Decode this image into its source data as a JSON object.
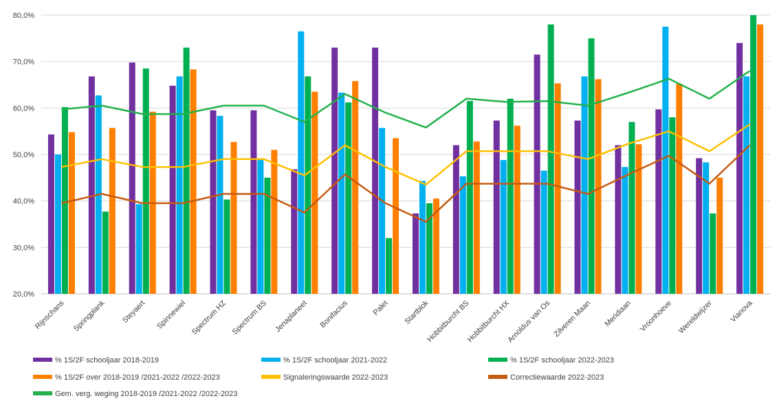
{
  "chart_data": {
    "type": "bar",
    "title": "",
    "xlabel": "",
    "ylabel": "",
    "ylim": [
      20,
      80
    ],
    "yticks": [
      "20,0%",
      "30,0%",
      "40,0%",
      "50,0%",
      "60,0%",
      "70,0%",
      "80,0%"
    ],
    "grid": true,
    "legend_position": "bottom",
    "categories": [
      "Rijnschans",
      "Springplank",
      "Steyaert",
      "Spinnewiel",
      "Spectrum HZ",
      "Spectrum BS",
      "Jenaplaneet",
      "Bonifacius",
      "Palet",
      "Startblok",
      "Hobbitburcht BS",
      "Hobbitburcht HX",
      "Arnoldus van Os",
      "Zilveren Maan",
      "Meridiaan",
      "Vroonhoeve",
      "Wereldwijzer",
      "Vianova"
    ],
    "bar_series": [
      {
        "name": "% 1S/2F schooljaar 2018-2019",
        "color": "#7030A0",
        "values": [
          54.3,
          66.8,
          69.8,
          64.8,
          59.5,
          59.5,
          46.8,
          73.0,
          73.0,
          37.3,
          52.0,
          57.3,
          71.5,
          57.3,
          52.0,
          59.7,
          49.2,
          74.0
        ]
      },
      {
        "name": "% 1S/2F schooljaar 2021-2022",
        "color": "#00B0F0",
        "values": [
          50.0,
          62.7,
          39.3,
          66.8,
          58.3,
          48.8,
          76.5,
          63.3,
          55.7,
          44.3,
          45.3,
          48.8,
          46.5,
          66.8,
          47.3,
          77.5,
          48.3,
          66.8
        ]
      },
      {
        "name": "% 1S/2F schooljaar 2022-2023",
        "color": "#00B050",
        "values": [
          60.2,
          37.7,
          68.5,
          73.0,
          40.3,
          45.0,
          66.8,
          61.2,
          32.0,
          39.5,
          61.5,
          62.0,
          78.0,
          75.0,
          57.0,
          58.0,
          37.3,
          80.0
        ]
      },
      {
        "name": "% 1S/2F over 2018-2019 /2021-2022 /2022-2023",
        "color": "#FF7F00",
        "values": [
          54.8,
          55.7,
          59.2,
          68.3,
          52.7,
          51.0,
          63.5,
          65.8,
          53.5,
          40.5,
          52.8,
          56.2,
          65.3,
          66.2,
          52.2,
          65.2,
          45.0,
          78.0
        ]
      }
    ],
    "line_series": [
      {
        "name": "Signaleringswaarde 2022-2023",
        "color": "#FFC000",
        "values": [
          47.3,
          49.0,
          47.3,
          47.3,
          49.0,
          49.0,
          45.5,
          52.0,
          47.3,
          43.5,
          50.7,
          50.7,
          50.7,
          49.0,
          52.3,
          55.0,
          50.7,
          56.5
        ]
      },
      {
        "name": "Correctiewaarde 2022-2023",
        "color": "#C55A11",
        "values": [
          39.5,
          41.5,
          39.5,
          39.5,
          41.5,
          41.5,
          37.5,
          45.7,
          39.5,
          35.5,
          43.7,
          43.7,
          43.7,
          41.5,
          45.7,
          49.7,
          43.7,
          52.0
        ]
      },
      {
        "name": "Gem. verg. weging 2018-2019 /2021-2022 /2022-2023",
        "color": "#22B14C",
        "values": [
          59.7,
          60.5,
          58.7,
          58.7,
          60.5,
          60.5,
          57.0,
          63.0,
          59.0,
          55.8,
          62.0,
          61.3,
          61.5,
          60.5,
          63.3,
          66.3,
          62.0,
          68.0
        ]
      }
    ]
  }
}
